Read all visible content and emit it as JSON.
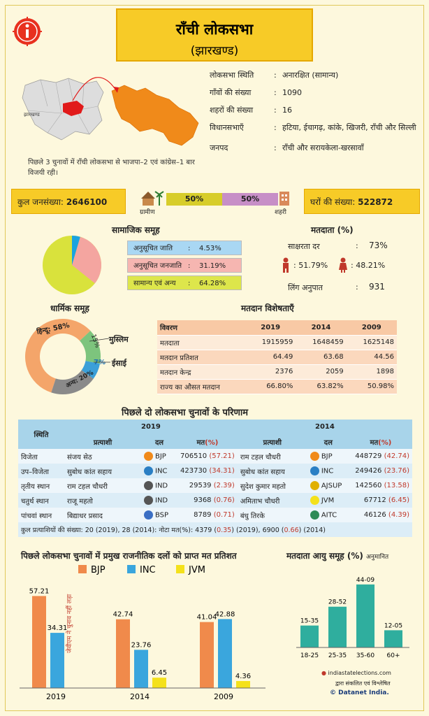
{
  "header": {
    "title": "राँची लोकसभा",
    "subtitle": "(झारखण्ड)"
  },
  "map": {
    "state_label": "झारखण्ड",
    "note": "पिछले 3 चुनावों में राँची लोकसभा से भाजपा–2 एवं कांग्रेस–1 बार विजयी रही।"
  },
  "facts": [
    {
      "k": "लोकसभा स्थिति",
      "c": ":",
      "v": "अनारक्षित (सामान्य)"
    },
    {
      "k": "गाँवों की संख्या",
      "c": ":",
      "v": "1090"
    },
    {
      "k": "शहरों की संख्या",
      "c": ":",
      "v": "16"
    },
    {
      "k": "विधानसभाएँ",
      "c": ":",
      "v": "हटिया, ईचागढ़, कांके, खिजरी, राँची और सिल्ली"
    },
    {
      "k": "जनपद",
      "c": ":",
      "v": "राँची और सरायकेला-खरसावाँ"
    }
  ],
  "population": {
    "label": "कुल जनसंख्या:",
    "value": "2646100",
    "rural_pct": "50%",
    "urban_pct": "50%",
    "rural_label": "ग्रामीण",
    "urban_label": "शहरी",
    "rural_value": 50,
    "urban_value": 50
  },
  "households": {
    "label": "घरों की संख्या:",
    "value": "522872"
  },
  "social": {
    "title": "सामाजिक समूह",
    "items": [
      {
        "name": "अनुसूचित जाति",
        "colon": ":",
        "pct": "4.53%",
        "value": 4.53,
        "color": "#1aa3e0"
      },
      {
        "name": "अनुसूचित जनजाति",
        "colon": ":",
        "pct": "31.19%",
        "value": 31.19,
        "color": "#f4a5a0"
      },
      {
        "name": "सामान्य एवं अन्य",
        "colon": ":",
        "pct": "64.28%",
        "value": 64.28,
        "color": "#d9e23c"
      }
    ]
  },
  "voters": {
    "title": "मतदाता (%)",
    "literacy_label": "साक्षरता दर",
    "literacy_colon": ":",
    "literacy": "73%",
    "male": ": 51.79%",
    "female": ": 48.21%",
    "sex_ratio_label": "लिंग अनुपात",
    "sex_ratio_colon": ":",
    "sex_ratio": "931"
  },
  "religion": {
    "title": "धार्मिक समूह",
    "items": [
      {
        "name": "हिन्दू",
        "label": "हिन्दू: 58%",
        "value": 58,
        "color": "#f4a56a"
      },
      {
        "name": "मुस्लिम",
        "label": "15%",
        "value": 15,
        "color": "#7dc47d"
      },
      {
        "name": "ईसाई",
        "label": "7%",
        "value": 7,
        "color": "#3b9fd8"
      },
      {
        "name": "अन्य",
        "label": "अन्य: 20%",
        "value": 20,
        "color": "#8a8a8a"
      }
    ]
  },
  "polling": {
    "title": "मतदान विशेषताएँ",
    "rows": [
      [
        "विवरण",
        "2019",
        "2014",
        "2009"
      ],
      [
        "मतदाता",
        "1915959",
        "1648459",
        "1625148"
      ],
      [
        "मतदान प्रतिशत",
        "64.49",
        "63.68",
        "44.56"
      ],
      [
        "मतदान केन्द्र",
        "2376",
        "2059",
        "1898"
      ],
      [
        "राज्य का औसत मतदान",
        "66.80%",
        "63.82%",
        "50.98%"
      ]
    ]
  },
  "results": {
    "title": "पिछले दो लोकसभा चुनावों के परिणाम",
    "status": "स्थिति",
    "year_2019": "2019",
    "year_2014": "2014",
    "cand": "प्रत्याशी",
    "party": "दल",
    "votes": "मत",
    "pct": "(%)",
    "rows": [
      {
        "pos": "विजेता",
        "c19": "संजय सेठ",
        "p19": "BJP",
        "v19": "706510",
        "pc19": "(57.21)",
        "c14": "राम टहल चौधरी",
        "p14": "BJP",
        "v14": "448729",
        "pc14": "(42.74)"
      },
      {
        "pos": "उप–विजेता",
        "c19": "सुबोध कांत सहाय",
        "p19": "INC",
        "v19": "423730",
        "pc19": "(34.31)",
        "c14": "सुबोध कांत सहाय",
        "p14": "INC",
        "v14": "249426",
        "pc14": "(23.76)"
      },
      {
        "pos": "तृतीय स्थान",
        "c19": "राम टहल चौधरी",
        "p19": "IND",
        "v19": "29539",
        "pc19": "(2.39)",
        "c14": "सुदेश कुमार महतो",
        "p14": "AJSUP",
        "v14": "142560",
        "pc14": "(13.58)"
      },
      {
        "pos": "चतुर्थ स्थान",
        "c19": "राजू महतो",
        "p19": "IND",
        "v19": "9368",
        "pc19": "(0.76)",
        "c14": "अमिताभ चौधरी",
        "p14": "JVM",
        "v14": "67712",
        "pc14": "(6.45)"
      },
      {
        "pos": "पांचवां स्थान",
        "c19": "बिद्याधर प्रसाद",
        "p19": "BSP",
        "v19": "8789",
        "pc19": "(0.71)",
        "c14": "बंधु तिरके",
        "p14": "AITC",
        "v14": "46126",
        "pc14": "(4.39)"
      }
    ],
    "footer_a": "कुल प्रत्याशियों की संख्या: 20 (2019), 28 (2014): नोटा मत(%)",
    "footer_b": ": 4379 (",
    "footer_c": "0.35",
    "footer_d": ") (2019), 6900 (",
    "footer_e": "0.66",
    "footer_f": ") (2014)"
  },
  "chart_data": [
    {
      "type": "bar",
      "title": "पिछले लोकसभा चुनावों में प्रमुख राजनीतिक दलों को प्राप्त मत प्रतिशत",
      "categories": [
        "2019",
        "2014",
        "2009"
      ],
      "series": [
        {
          "name": "BJP",
          "values": [
            57.21,
            42.74,
            41.04
          ],
          "color": "#f08a4b"
        },
        {
          "name": "INC",
          "values": [
            34.31,
            23.76,
            42.88
          ],
          "color": "#3aa6dd"
        },
        {
          "name": "JVM",
          "values": [
            null,
            6.45,
            4.36
          ],
          "color": "#f4e11b"
        }
      ],
      "annotation": "जेवीएम ने चुनाव नहीं लड़ा",
      "ylim": [
        0,
        60
      ]
    },
    {
      "type": "bar",
      "title": "मतदाता आयु समूह (%)",
      "subtitle": "अनुमानित",
      "categories": [
        "18-25",
        "25-35",
        "35-60",
        "60+"
      ],
      "value_labels": [
        "15-35",
        "28-52",
        "44-09",
        "12-05"
      ],
      "values": [
        15.35,
        28.52,
        44.09,
        12.05
      ],
      "color": "#2fae9e"
    }
  ],
  "credits": {
    "site": "indiastatelections.com",
    "line2": "द्वारा संकलित एवं विश्लेषित",
    "brand": "© Datanet India."
  }
}
